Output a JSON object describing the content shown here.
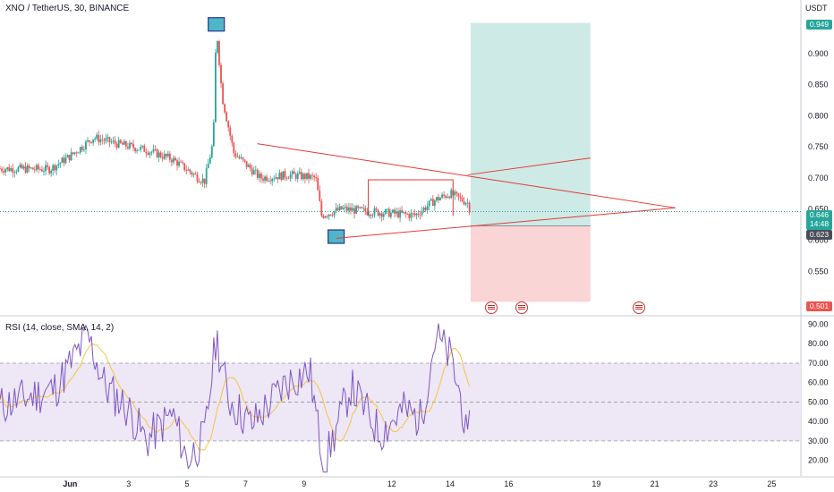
{
  "header": {
    "symbol_line": "XNO / TetherUS, 30, BINANCE",
    "unit": "USDT"
  },
  "rsi": {
    "title": "RSI (14, close, SMA, 14, 2)"
  },
  "price_tags": {
    "target": "0.949",
    "current_price": "0.646",
    "current_countdown": "14:48",
    "entry": "0.623",
    "stop": "0.501"
  },
  "colors": {
    "candle_up": "#26a69a",
    "candle_down": "#ef5350",
    "trendline": "#e53935",
    "profit_zone": "#cdeae6",
    "loss_zone": "#fad5d5",
    "rsi_line": "#7e57c2",
    "rsi_ma": "#f5c542",
    "rsi_band": "#ede7f6",
    "current_price": "#26a69a",
    "target_tag": "#26a69a",
    "entry_tag": "#4a4e59",
    "stop_tag": "#ef5350"
  },
  "icons": [
    "us-flag-event-icon",
    "us-flag-event-icon",
    "us-flag-event-icon"
  ],
  "chart_data": [
    {
      "type": "candlestick",
      "title": "XNO / TetherUS, 30, BINANCE",
      "ylabel": "USDT",
      "ylim": [
        0.48,
        0.96
      ],
      "y_ticks": [
        0.55,
        0.6,
        0.65,
        0.7,
        0.75,
        0.8,
        0.85,
        0.9
      ],
      "x_ticks": [
        "Jun",
        "3",
        "5",
        "7",
        "9",
        "12",
        "14",
        "16",
        "19",
        "21",
        "23",
        "25"
      ],
      "x_tick_days": [
        1,
        3,
        5,
        7,
        9,
        12,
        14,
        16,
        19,
        21,
        23,
        25
      ],
      "x_range_days": [
        -1.4,
        26
      ],
      "price_path": [
        {
          "day": -1.4,
          "price": 0.715
        },
        {
          "day": 0.3,
          "price": 0.714
        },
        {
          "day": 1.0,
          "price": 0.735
        },
        {
          "day": 1.8,
          "price": 0.765
        },
        {
          "day": 2.6,
          "price": 0.755
        },
        {
          "day": 3.6,
          "price": 0.745
        },
        {
          "day": 4.5,
          "price": 0.73
        },
        {
          "day": 5.4,
          "price": 0.7
        },
        {
          "day": 5.6,
          "price": 0.695
        },
        {
          "day": 5.9,
          "price": 0.76
        },
        {
          "day": 6.0,
          "price": 0.945
        },
        {
          "day": 6.2,
          "price": 0.83
        },
        {
          "day": 6.6,
          "price": 0.74
        },
        {
          "day": 7.5,
          "price": 0.7
        },
        {
          "day": 8.5,
          "price": 0.705
        },
        {
          "day": 9.4,
          "price": 0.7
        },
        {
          "day": 9.6,
          "price": 0.64
        },
        {
          "day": 10.3,
          "price": 0.65
        },
        {
          "day": 11.5,
          "price": 0.645
        },
        {
          "day": 12.8,
          "price": 0.64
        },
        {
          "day": 13.5,
          "price": 0.665
        },
        {
          "day": 14.0,
          "price": 0.675
        },
        {
          "day": 14.6,
          "price": 0.66
        },
        {
          "day": 14.7,
          "price": 0.646
        }
      ],
      "annotations": [
        {
          "type": "marker",
          "day": 6.0,
          "price": 0.946
        },
        {
          "type": "marker",
          "day": 10.1,
          "price": 0.605
        },
        {
          "type": "trendline",
          "from": {
            "day": 7.4,
            "price": 0.755
          },
          "to": {
            "day": 21.7,
            "price": 0.652
          }
        },
        {
          "type": "trendline",
          "from": {
            "day": 10.1,
            "price": 0.603
          },
          "to": {
            "day": 21.7,
            "price": 0.652
          }
        },
        {
          "type": "trendline",
          "from": {
            "day": 14.6,
            "price": 0.705
          },
          "to": {
            "day": 18.8,
            "price": 0.732
          }
        },
        {
          "type": "range",
          "from_day": 11.2,
          "to_day": 14.1,
          "top": 0.697,
          "bottom": 0.639
        },
        {
          "type": "long_position",
          "from_day": 14.7,
          "to_day": 18.8,
          "entry": 0.623,
          "target": 0.949,
          "stop": 0.501
        }
      ],
      "current_price": 0.646
    },
    {
      "type": "line",
      "title": "RSI (14, close, SMA, 14, 2)",
      "ylim": [
        12,
        93
      ],
      "y_ticks": [
        20.0,
        30.0,
        40.0,
        50.0,
        60.0,
        70.0,
        80.0,
        90.0
      ],
      "bands": [
        30,
        50,
        70
      ],
      "rsi_path": [
        {
          "day": -1.4,
          "rsi": 48
        },
        {
          "day": 0.5,
          "rsi": 57
        },
        {
          "day": 1.6,
          "rsi": 84
        },
        {
          "day": 2.2,
          "rsi": 58
        },
        {
          "day": 3.0,
          "rsi": 46
        },
        {
          "day": 3.6,
          "rsi": 30
        },
        {
          "day": 4.5,
          "rsi": 44
        },
        {
          "day": 5.0,
          "rsi": 20
        },
        {
          "day": 5.6,
          "rsi": 32
        },
        {
          "day": 6.0,
          "rsi": 84
        },
        {
          "day": 6.4,
          "rsi": 52
        },
        {
          "day": 7.2,
          "rsi": 38
        },
        {
          "day": 8.4,
          "rsi": 60
        },
        {
          "day": 9.2,
          "rsi": 66
        },
        {
          "day": 9.5,
          "rsi": 34
        },
        {
          "day": 9.7,
          "rsi": 18
        },
        {
          "day": 10.6,
          "rsi": 58
        },
        {
          "day": 11.6,
          "rsi": 34
        },
        {
          "day": 12.4,
          "rsi": 46
        },
        {
          "day": 13.0,
          "rsi": 41
        },
        {
          "day": 13.5,
          "rsi": 84
        },
        {
          "day": 14.0,
          "rsi": 73
        },
        {
          "day": 14.4,
          "rsi": 50
        },
        {
          "day": 14.6,
          "rsi": 25
        },
        {
          "day": 14.7,
          "rsi": 42
        }
      ]
    }
  ]
}
